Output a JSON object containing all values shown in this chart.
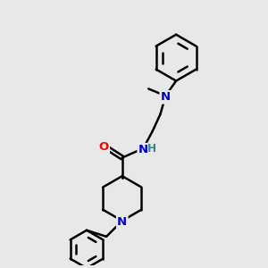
{
  "background_color": "#e8e8e8",
  "line_color": "#000000",
  "bond_width": 1.8,
  "atom_colors": {
    "N": "#0000cc",
    "O": "#ff0000",
    "H": "#2e8b8b",
    "C": "#000000"
  },
  "font_size": 9.5,
  "fig_width": 3.0,
  "fig_height": 3.0,
  "dpi": 100,
  "xlim": [
    0,
    10
  ],
  "ylim": [
    0,
    10
  ]
}
